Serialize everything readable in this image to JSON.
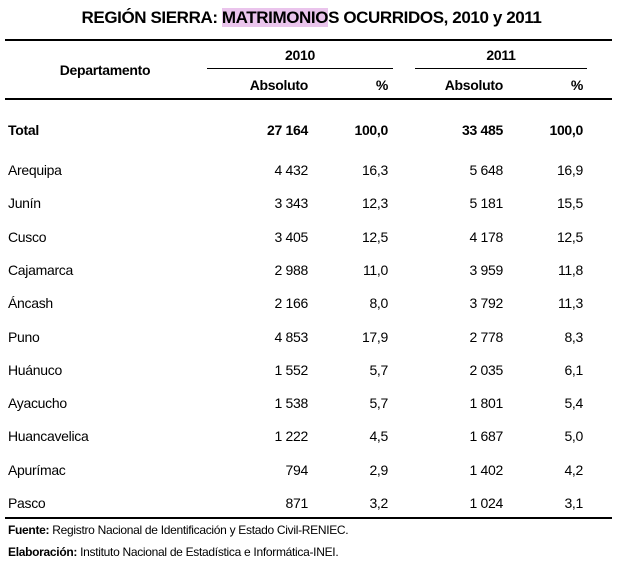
{
  "title": {
    "prefix": "REGIÓN SIERRA: ",
    "highlight": "MATRIMONIO",
    "suffix": "S OCURRIDOS, 2010 y 2011"
  },
  "table": {
    "header": {
      "row_label": "Departamento",
      "years": [
        "2010",
        "2011"
      ],
      "columns": [
        "Absoluto",
        "%",
        "Absoluto",
        "%"
      ]
    },
    "rows": [
      [
        "Total",
        "27 164",
        "100,0",
        "33 485",
        "100,0"
      ],
      [
        "Arequipa",
        "4 432",
        "16,3",
        "5 648",
        "16,9"
      ],
      [
        "Junín",
        "3 343",
        "12,3",
        "5 181",
        "15,5"
      ],
      [
        "Cusco",
        "3 405",
        "12,5",
        "4 178",
        "12,5"
      ],
      [
        "Cajamarca",
        "2 988",
        "11,0",
        "3 959",
        "11,8"
      ],
      [
        "Áncash",
        "2 166",
        "8,0",
        "3 792",
        "11,3"
      ],
      [
        "Puno",
        "4 853",
        "17,9",
        "2 778",
        "8,3"
      ],
      [
        "Huánuco",
        "1 552",
        "5,7",
        "2 035",
        "6,1"
      ],
      [
        "Ayacucho",
        "1 538",
        "5,7",
        "1 801",
        "5,4"
      ],
      [
        "Huancavelica",
        "1 222",
        "4,5",
        "1 687",
        "5,0"
      ],
      [
        "Apurímac",
        "794",
        "2,9",
        "1 402",
        "4,2"
      ],
      [
        "Pasco",
        "871",
        "3,2",
        "1 024",
        "3,1"
      ]
    ]
  },
  "notes": [
    {
      "label": "Fuente:",
      "text": " Registro Nacional de Identificación y Estado Civil-RENIEC."
    },
    {
      "label": "Elaboración:",
      "text": " Instituto Nacional de Estadística e Informática-INEI."
    }
  ]
}
